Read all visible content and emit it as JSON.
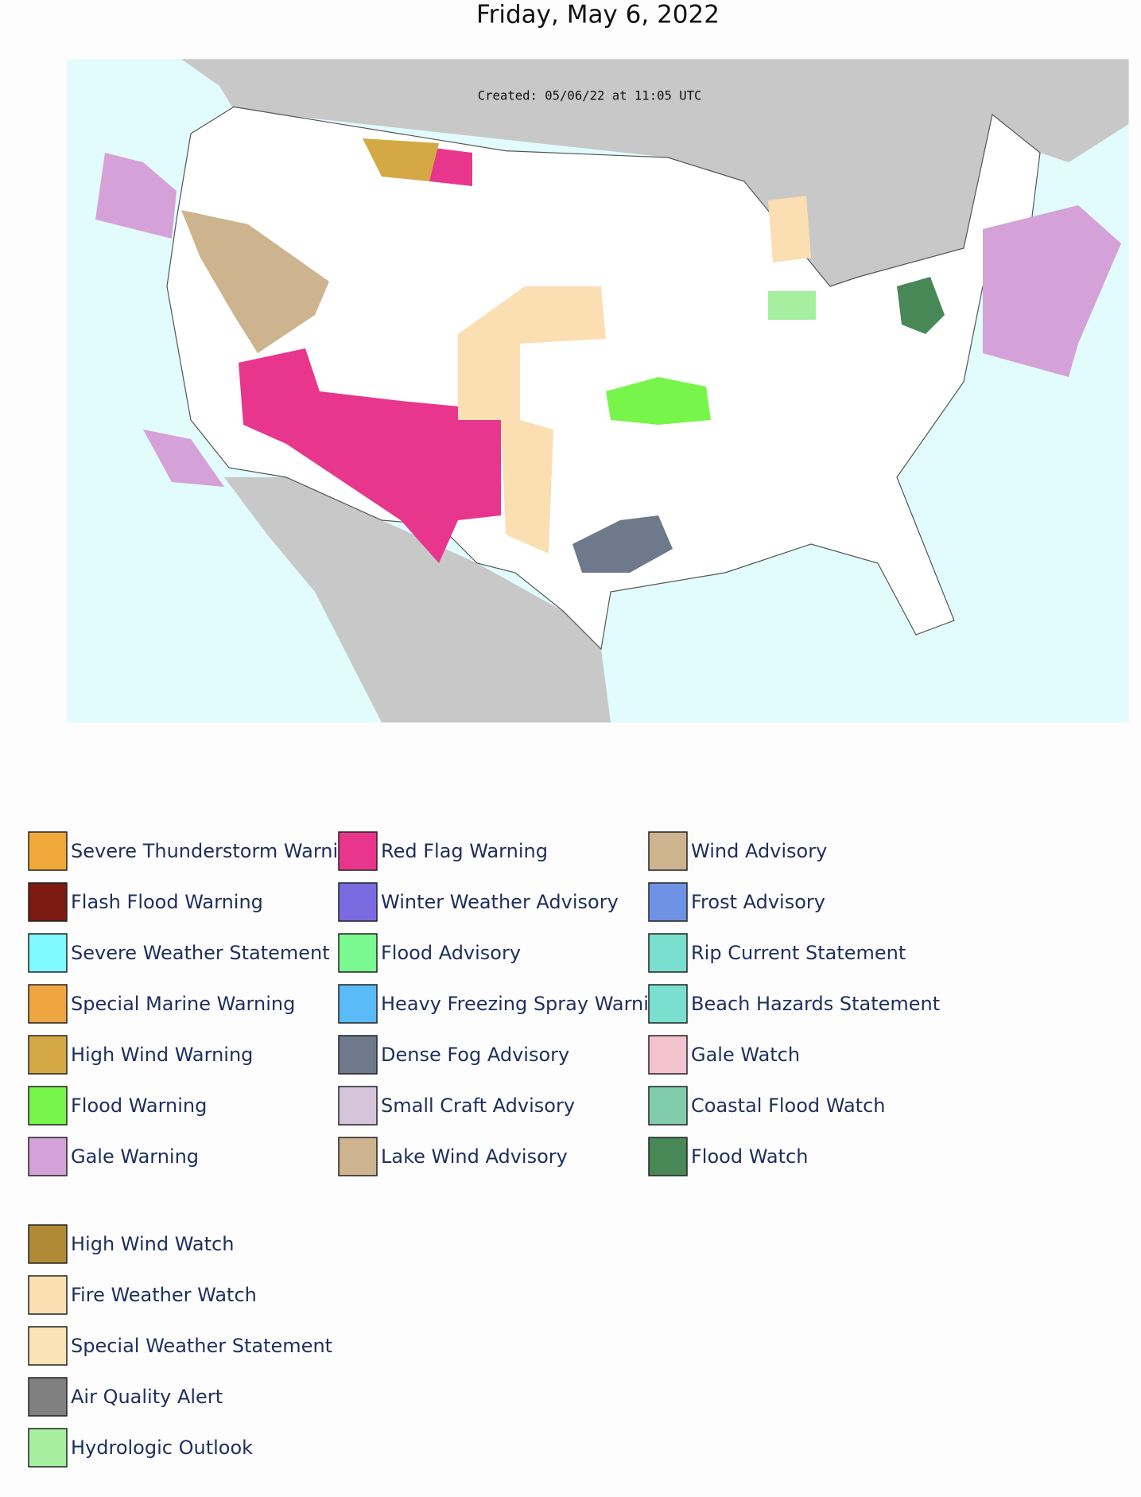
{
  "title": "Friday, May 6, 2022",
  "map": {
    "created_label": "Created: 05/06/22 at 11:05 UTC"
  },
  "legend": {
    "groups": [
      {
        "columns": [
          [
            {
              "label": "Severe Thunderstorm Warning",
              "color": "#f2a93b"
            },
            {
              "label": "Flash Flood Warning",
              "color": "#7d1a12"
            },
            {
              "label": "Severe Weather Statement",
              "color": "#7ffaff"
            },
            {
              "label": "Special Marine Warning",
              "color": "#f0a640"
            },
            {
              "label": "High Wind Warning",
              "color": "#d4a844"
            },
            {
              "label": "Flood Warning",
              "color": "#77f54b"
            },
            {
              "label": "Gale Warning",
              "color": "#d4a2d8"
            }
          ],
          [
            {
              "label": "Red Flag Warning",
              "color": "#e8368d"
            },
            {
              "label": "Winter Weather Advisory",
              "color": "#7b6ae0"
            },
            {
              "label": "Flood Advisory",
              "color": "#79f98f"
            },
            {
              "label": "Heavy Freezing Spray Warning",
              "color": "#5bbaf8"
            },
            {
              "label": "Dense Fog Advisory",
              "color": "#6e7a8c"
            },
            {
              "label": "Small Craft Advisory",
              "color": "#d6c4da"
            },
            {
              "label": "Lake Wind Advisory",
              "color": "#cdb38e"
            }
          ],
          [
            {
              "label": "Wind Advisory",
              "color": "#cdb38e"
            },
            {
              "label": "Frost Advisory",
              "color": "#6f93e4"
            },
            {
              "label": "Rip Current Statement",
              "color": "#7adfcf"
            },
            {
              "label": "Beach Hazards Statement",
              "color": "#7adfcf"
            },
            {
              "label": "Gale Watch",
              "color": "#f2c2cd"
            },
            {
              "label": "Coastal Flood Watch",
              "color": "#80ccab"
            },
            {
              "label": "Flood Watch",
              "color": "#478856"
            }
          ]
        ]
      },
      {
        "columns": [
          [
            {
              "label": "High Wind Watch",
              "color": "#b08a34"
            },
            {
              "label": "Fire Weather Watch",
              "color": "#fbdfb3"
            },
            {
              "label": "Special Weather Statement",
              "color": "#fbe3b8"
            },
            {
              "label": "Air Quality Alert",
              "color": "#808080"
            },
            {
              "label": "Hydrologic Outlook",
              "color": "#a6eea0"
            }
          ]
        ]
      }
    ]
  }
}
